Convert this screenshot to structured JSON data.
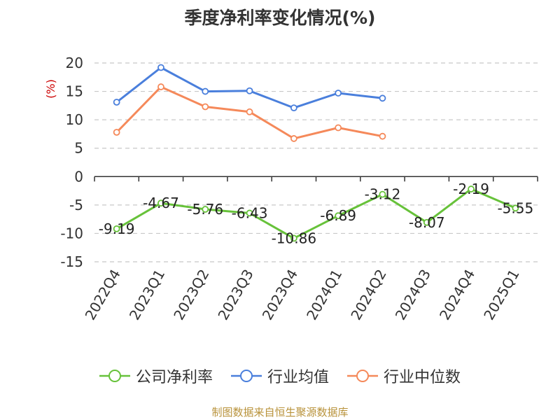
{
  "chart_data": {
    "type": "line",
    "title": "季度净利率变化情况(%)",
    "ylabel": "(%)",
    "categories": [
      "2022Q4",
      "2023Q1",
      "2023Q2",
      "2023Q3",
      "2023Q4",
      "2024Q1",
      "2024Q2",
      "2024Q3",
      "2024Q4",
      "2025Q1"
    ],
    "ylim": [
      -15,
      20
    ],
    "yticks": [
      20,
      15,
      10,
      5,
      0,
      -5,
      -10,
      -15
    ],
    "grid": true,
    "legend_position": "bottom",
    "series": [
      {
        "name": "公司净利率",
        "color": "#67c23a",
        "show_labels": true,
        "values": [
          -9.19,
          -4.67,
          -5.76,
          -6.43,
          -10.86,
          -6.89,
          -3.12,
          -8.07,
          -2.19,
          -5.55
        ]
      },
      {
        "name": "行业均值",
        "color": "#4a7fdc",
        "show_labels": false,
        "values": [
          13.1,
          19.2,
          15.0,
          15.1,
          12.1,
          14.7,
          13.8,
          null,
          null,
          null
        ]
      },
      {
        "name": "行业中位数",
        "color": "#f5895a",
        "show_labels": false,
        "values": [
          7.8,
          15.8,
          12.3,
          11.4,
          6.7,
          8.6,
          7.1,
          null,
          null,
          null
        ]
      }
    ]
  },
  "source_note": "制图数据来自恒生聚源数据库"
}
